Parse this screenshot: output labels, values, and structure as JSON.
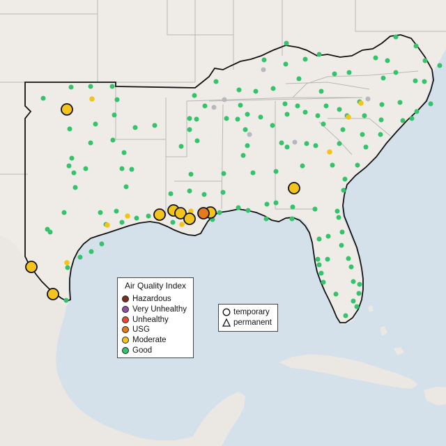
{
  "map": {
    "colors": {
      "water": "#d4e1ea",
      "land": "#efece8",
      "state_border": "#b9b7b4",
      "region_outline": "#111111"
    },
    "aqi_legend": {
      "title": "Air Quality Index",
      "items": [
        {
          "label": "Hazardous",
          "color": "#7e2b22"
        },
        {
          "label": "Very Unhealthy",
          "color": "#8f4fa3"
        },
        {
          "label": "Unhealthy",
          "color": "#e64a3b"
        },
        {
          "label": "USG",
          "color": "#e57a1d"
        },
        {
          "label": "Moderate",
          "color": "#f2c41c"
        },
        {
          "label": "Good",
          "color": "#34c26b"
        }
      ]
    },
    "monitor_type_legend": {
      "items": [
        {
          "label": "temporary",
          "icon": "circle-outline-icon"
        },
        {
          "label": "permanent",
          "icon": "triangle-outline-icon"
        }
      ]
    }
  }
}
